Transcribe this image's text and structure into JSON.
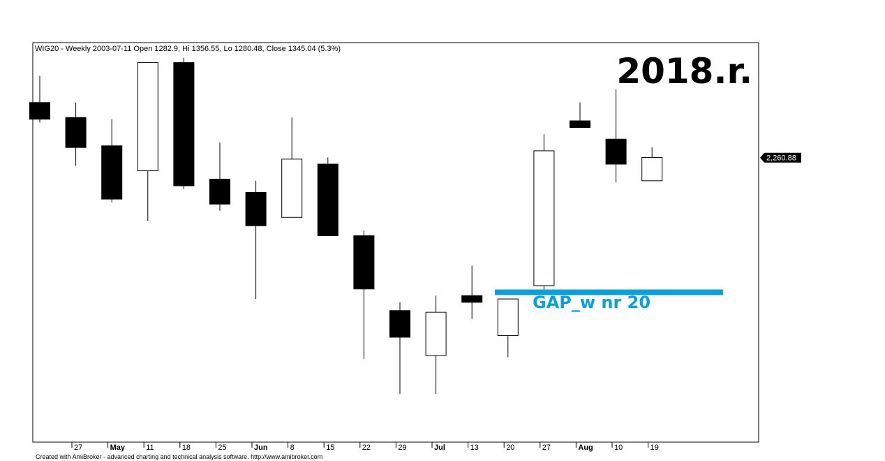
{
  "chart_data": {
    "type": "candlestick",
    "header": "WIG20 - Weekly 2003-07-11 Open 1282.9, Hi 1356.55, Lo 1280.48, Close 1345.04 (5.3%)",
    "annotation_year": "2018.r.",
    "gap_label": "GAP_w nr 20",
    "gap_level": 2180,
    "last_price_label": "2,260.88",
    "last_price": 2260.88,
    "credit": "Created with AmiBroker - advanced charting and technical analysis software. http://www.amibroker.com",
    "ylim": [
      2090,
      2330
    ],
    "colors": {
      "bull_fill": "#ffffff",
      "bear_fill": "#000000",
      "gap_line": "#0aa0dc",
      "gap_text": "#0aa0dc"
    },
    "grid": false,
    "candles": [
      {
        "o": 2294,
        "h": 2310,
        "l": 2282,
        "c": 2284
      },
      {
        "o": 2285,
        "h": 2294,
        "l": 2256,
        "c": 2267
      },
      {
        "o": 2268,
        "h": 2284,
        "l": 2234,
        "c": 2236
      },
      {
        "o": 2253,
        "h": 2316,
        "l": 2223,
        "c": 2318
      },
      {
        "o": 2318,
        "h": 2321,
        "l": 2242,
        "c": 2244
      },
      {
        "o": 2248,
        "h": 2270,
        "l": 2229,
        "c": 2233
      },
      {
        "o": 2240,
        "h": 2247,
        "l": 2176,
        "c": 2220
      },
      {
        "o": 2225,
        "h": 2285,
        "l": 2225,
        "c": 2260
      },
      {
        "o": 2257,
        "h": 2261,
        "l": 2214,
        "c": 2214
      },
      {
        "o": 2214,
        "h": 2217,
        "l": 2140,
        "c": 2182
      },
      {
        "o": 2169,
        "h": 2174,
        "l": 2119,
        "c": 2153
      },
      {
        "o": 2142,
        "h": 2178,
        "l": 2119,
        "c": 2168
      },
      {
        "o": 2178,
        "h": 2196,
        "l": 2164,
        "c": 2174
      },
      {
        "o": 2154,
        "h": 2175,
        "l": 2141,
        "c": 2176
      },
      {
        "o": 2184,
        "h": 2275,
        "l": 2181,
        "c": 2265
      },
      {
        "o": 2283,
        "h": 2294,
        "l": 2280,
        "c": 2279
      },
      {
        "o": 2272,
        "h": 2302,
        "l": 2246,
        "c": 2257
      },
      {
        "o": 2247,
        "h": 2267,
        "l": 2247,
        "c": 2261
      }
    ],
    "x_ticks": [
      {
        "label": "27",
        "bold": false
      },
      {
        "label": "May",
        "bold": true
      },
      {
        "label": "11",
        "bold": false
      },
      {
        "label": "18",
        "bold": false
      },
      {
        "label": "25",
        "bold": false
      },
      {
        "label": "Jun",
        "bold": true
      },
      {
        "label": "8",
        "bold": false
      },
      {
        "label": "15",
        "bold": false
      },
      {
        "label": "22",
        "bold": false
      },
      {
        "label": "29",
        "bold": false
      },
      {
        "label": "Jul",
        "bold": true
      },
      {
        "label": "13",
        "bold": false
      },
      {
        "label": "20",
        "bold": false
      },
      {
        "label": "27",
        "bold": false
      },
      {
        "label": "Aug",
        "bold": true
      },
      {
        "label": "10",
        "bold": false
      },
      {
        "label": "19",
        "bold": false
      }
    ]
  }
}
